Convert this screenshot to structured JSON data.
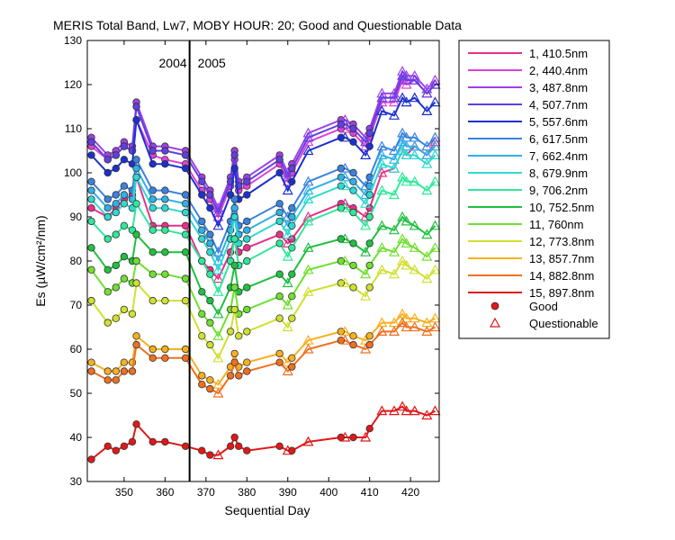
{
  "chart_data": {
    "type": "line",
    "title": "MERIS Total Band,  Lw7, MOBY HOUR: 20;  Good and Questionable Data",
    "xlabel": "Sequential Day",
    "ylabel": "Es (µW/cm²/nm)",
    "xlim": [
      341,
      427
    ],
    "ylim": [
      30,
      130
    ],
    "xticks": [
      350,
      360,
      370,
      380,
      390,
      400,
      410,
      420
    ],
    "yticks": [
      30,
      40,
      50,
      60,
      70,
      80,
      90,
      100,
      110,
      120,
      130
    ],
    "grid": false,
    "legend_position": "right",
    "year_divider": {
      "x": 366,
      "left_label": "2004",
      "right_label": "2005"
    },
    "markers": {
      "good_label": "Good",
      "questionable_label": "Questionable"
    },
    "x": [
      342,
      346,
      348,
      350,
      352,
      353,
      357,
      360,
      365,
      369,
      371,
      373,
      376,
      377,
      378,
      380,
      388,
      390,
      391,
      395,
      403,
      404,
      406,
      409,
      410,
      413,
      416,
      418,
      419,
      421,
      424,
      426
    ],
    "series": [
      {
        "name": "1, 410.5nm",
        "color": "#e8308a",
        "values": [
          92,
          90,
          92,
          94,
          95,
          99,
          88,
          88,
          88,
          80,
          78,
          76,
          82,
          85,
          82,
          83,
          86,
          84,
          85,
          90,
          93,
          93,
          92,
          90,
          92,
          100,
          101,
          105,
          104,
          106,
          104,
          107
        ]
      },
      {
        "name": "2, 440.4nm",
        "color": "#e040d8",
        "values": [
          106,
          103,
          104,
          106,
          105,
          112,
          104,
          103,
          102,
          96,
          94,
          90,
          97,
          103,
          96,
          97,
          102,
          98,
          100,
          107,
          110,
          110,
          109,
          106,
          108,
          116,
          116,
          121,
          120,
          121,
          118,
          120
        ]
      },
      {
        "name": "3, 487.8nm",
        "color": "#a040e8",
        "values": [
          108,
          104,
          105,
          107,
          106,
          116,
          106,
          106,
          105,
          99,
          96,
          92,
          99,
          105,
          98,
          99,
          104,
          100,
          102,
          109,
          112,
          112,
          111,
          108,
          110,
          118,
          118,
          123,
          122,
          122,
          119,
          121
        ]
      },
      {
        "name": "4, 507.7nm",
        "color": "#6040e0",
        "values": [
          107,
          103,
          104,
          106,
          105,
          115,
          105,
          105,
          104,
          98,
          95,
          91,
          98,
          104,
          97,
          98,
          103,
          99,
          101,
          108,
          111,
          111,
          110,
          107,
          109,
          117,
          117,
          122,
          121,
          121,
          118,
          120
        ]
      },
      {
        "name": "5, 557.6nm",
        "color": "#1c30d0",
        "values": [
          104,
          100,
          101,
          103,
          102,
          112,
          102,
          102,
          101,
          95,
          92,
          88,
          95,
          101,
          94,
          95,
          100,
          96,
          98,
          105,
          108,
          108,
          107,
          104,
          106,
          114,
          113,
          117,
          116,
          117,
          114,
          116
        ]
      },
      {
        "name": "6, 617.5nm",
        "color": "#3a82e0",
        "values": [
          98,
          94,
          95,
          97,
          96,
          103,
          96,
          96,
          95,
          89,
          86,
          82,
          89,
          94,
          88,
          89,
          93,
          90,
          92,
          98,
          101,
          101,
          100,
          97,
          99,
          106,
          105,
          109,
          108,
          108,
          106,
          108
        ]
      },
      {
        "name": "7, 662.4nm",
        "color": "#30b0e8",
        "values": [
          96,
          92,
          93,
          95,
          94,
          101,
          94,
          94,
          93,
          87,
          84,
          80,
          87,
          92,
          86,
          87,
          91,
          88,
          90,
          96,
          99,
          99,
          98,
          95,
          97,
          104,
          103,
          107,
          106,
          106,
          104,
          106
        ]
      },
      {
        "name": "8, 679.9nm",
        "color": "#30d8d0",
        "values": [
          94,
          90,
          91,
          93,
          92,
          99,
          92,
          92,
          91,
          85,
          82,
          78,
          85,
          90,
          84,
          85,
          89,
          86,
          88,
          94,
          97,
          97,
          96,
          93,
          95,
          102,
          101,
          105,
          104,
          104,
          102,
          104
        ]
      },
      {
        "name": "9, 706.2nm",
        "color": "#30e89a",
        "values": [
          89,
          85,
          86,
          88,
          87,
          93,
          87,
          87,
          86,
          80,
          77,
          73,
          80,
          85,
          79,
          80,
          84,
          81,
          83,
          89,
          92,
          92,
          91,
          88,
          90,
          96,
          95,
          99,
          98,
          98,
          96,
          98
        ]
      },
      {
        "name": "10, 752.5nm",
        "color": "#20c040",
        "values": [
          83,
          78,
          79,
          81,
          80,
          86,
          82,
          82,
          82,
          73,
          71,
          68,
          74,
          79,
          73,
          74,
          77,
          75,
          77,
          83,
          85,
          85,
          84,
          82,
          84,
          88,
          87,
          90,
          89,
          88,
          86,
          88
        ]
      },
      {
        "name": "11,   760nm",
        "color": "#70e030",
        "values": [
          78,
          73,
          74,
          76,
          75,
          80,
          77,
          77,
          76,
          68,
          66,
          63,
          69,
          74,
          68,
          69,
          72,
          70,
          72,
          78,
          80,
          80,
          79,
          77,
          79,
          83,
          82,
          85,
          84,
          83,
          81,
          83
        ]
      },
      {
        "name": "12, 773.8nm",
        "color": "#d0e030",
        "values": [
          71,
          66,
          67,
          69,
          68,
          75,
          71,
          71,
          71,
          63,
          61,
          58,
          64,
          69,
          63,
          64,
          67,
          65,
          67,
          73,
          75,
          75,
          74,
          72,
          74,
          78,
          77,
          80,
          79,
          78,
          76,
          78
        ]
      },
      {
        "name": "13, 857.7nm",
        "color": "#f8b020",
        "values": [
          57,
          55,
          55,
          57,
          57,
          63,
          60,
          60,
          60,
          54,
          53,
          52,
          56,
          59,
          56,
          57,
          59,
          57,
          58,
          62,
          64,
          64,
          63,
          62,
          63,
          66,
          66,
          68,
          67,
          67,
          66,
          67
        ]
      },
      {
        "name": "14, 882.8nm",
        "color": "#f07020",
        "values": [
          55,
          53,
          53,
          55,
          55,
          61,
          58,
          58,
          58,
          52,
          51,
          50,
          54,
          57,
          54,
          55,
          57,
          55,
          56,
          60,
          62,
          62,
          61,
          60,
          61,
          64,
          64,
          66,
          65,
          65,
          64,
          65
        ]
      },
      {
        "name": "15, 897.8nm",
        "color": "#e01818",
        "values": [
          35,
          38,
          37,
          38,
          39,
          43,
          39,
          39,
          38,
          37,
          36,
          36,
          38,
          40,
          38,
          37,
          38,
          37,
          37,
          39,
          40,
          40,
          40,
          40,
          42,
          46,
          46,
          47,
          46,
          46,
          45,
          46
        ]
      }
    ]
  }
}
